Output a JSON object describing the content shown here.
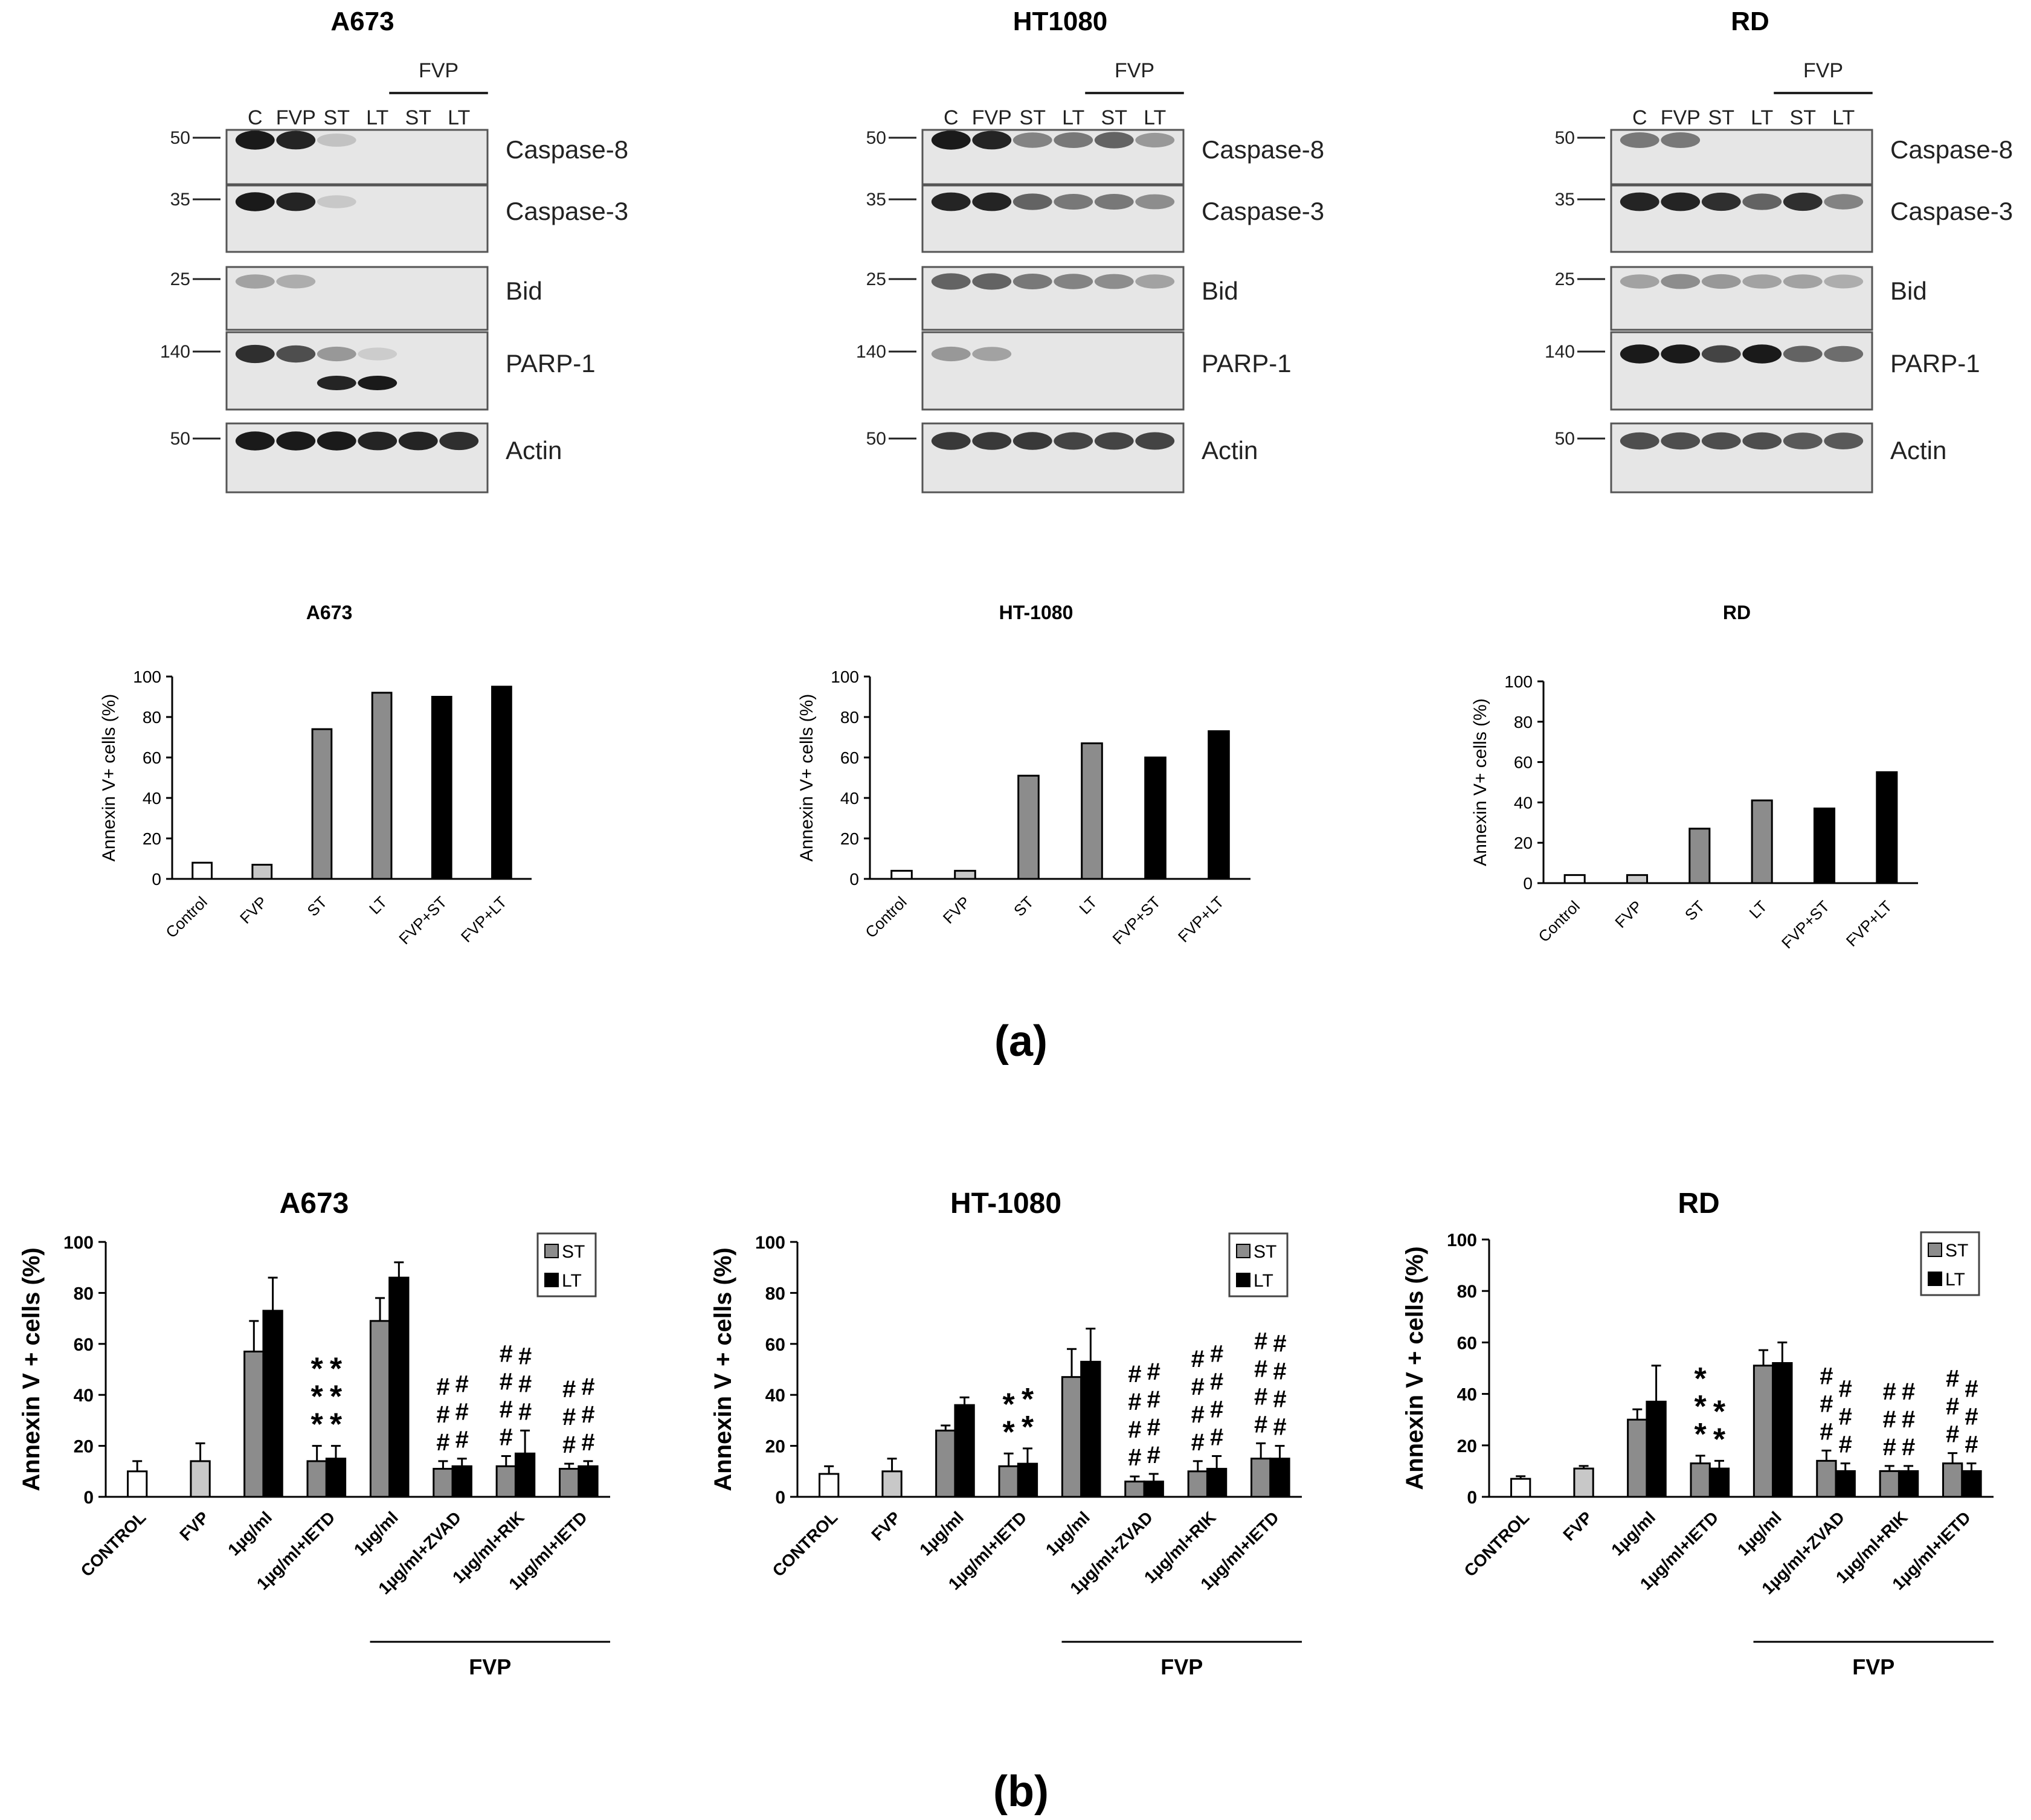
{
  "panel_a_label": "(a)",
  "panel_b_label": "(b)",
  "blots": [
    {
      "title": "A673",
      "bracket_label": "FVP",
      "lanes": [
        "C",
        "FVP",
        "ST",
        "LT",
        "ST",
        "LT"
      ],
      "rows": [
        {
          "protein": "Caspase-8",
          "mw": "50",
          "bands": [
            0.95,
            0.9,
            0.15,
            0,
            0,
            0
          ]
        },
        {
          "protein": "Caspase-3",
          "mw": "35",
          "bands": [
            0.95,
            0.9,
            0.12,
            0,
            0,
            0
          ]
        },
        {
          "protein": "Bid",
          "mw": "25",
          "bands": [
            0.3,
            0.25,
            0,
            0,
            0,
            0
          ]
        },
        {
          "protein": "PARP-1",
          "mw": "140",
          "bands": [
            0.85,
            0.7,
            0.35,
            0.1,
            0,
            0
          ],
          "cleaved": [
            0,
            0,
            0.9,
            0.95,
            0,
            0
          ]
        },
        {
          "protein": "Actin",
          "mw": "50",
          "bands": [
            0.95,
            0.95,
            0.95,
            0.9,
            0.9,
            0.85
          ]
        }
      ]
    },
    {
      "title": "HT1080",
      "bracket_label": "FVP",
      "lanes": [
        "C",
        "FVP",
        "ST",
        "LT",
        "ST",
        "LT"
      ],
      "rows": [
        {
          "protein": "Caspase-8",
          "mw": "50",
          "bands": [
            0.95,
            0.9,
            0.45,
            0.5,
            0.6,
            0.35
          ]
        },
        {
          "protein": "Caspase-3",
          "mw": "35",
          "bands": [
            0.9,
            0.9,
            0.6,
            0.5,
            0.5,
            0.4
          ]
        },
        {
          "protein": "Bid",
          "mw": "25",
          "bands": [
            0.6,
            0.6,
            0.5,
            0.45,
            0.4,
            0.3
          ]
        },
        {
          "protein": "PARP-1",
          "mw": "140",
          "bands": [
            0.35,
            0.3,
            0,
            0,
            0,
            0
          ]
        },
        {
          "protein": "Actin",
          "mw": "50",
          "bands": [
            0.8,
            0.8,
            0.8,
            0.75,
            0.75,
            0.75
          ]
        }
      ]
    },
    {
      "title": "RD",
      "bracket_label": "FVP",
      "lanes": [
        "C",
        "FVP",
        "ST",
        "LT",
        "ST",
        "LT"
      ],
      "rows": [
        {
          "protein": "Caspase-8",
          "mw": "50",
          "bands": [
            0.5,
            0.5,
            0,
            0,
            0,
            0
          ]
        },
        {
          "protein": "Caspase-3",
          "mw": "35",
          "bands": [
            0.9,
            0.9,
            0.85,
            0.6,
            0.85,
            0.45
          ]
        },
        {
          "protein": "Bid",
          "mw": "25",
          "bands": [
            0.3,
            0.4,
            0.35,
            0.3,
            0.3,
            0.25
          ]
        },
        {
          "protein": "PARP-1",
          "mw": "140",
          "bands": [
            0.95,
            0.95,
            0.75,
            0.95,
            0.6,
            0.55
          ]
        },
        {
          "protein": "Actin",
          "mw": "50",
          "bands": [
            0.7,
            0.7,
            0.7,
            0.7,
            0.65,
            0.65
          ]
        }
      ]
    }
  ],
  "chart_data": [
    {
      "type": "bar",
      "panel": "a",
      "title": "A673",
      "categories": [
        "Control",
        "FVP",
        "ST",
        "LT",
        "FVP+ST",
        "FVP+LT"
      ],
      "values": [
        8,
        7,
        74,
        92,
        90,
        95
      ],
      "colors": [
        "#ffffff",
        "#c8c8c8",
        "#8c8c8c",
        "#8c8c8c",
        "#000000",
        "#000000"
      ],
      "ylabel": "Annexin V+ cells (%)",
      "ylim": [
        0,
        100
      ],
      "yticks": [
        "0",
        "20",
        "40",
        "60",
        "80",
        "100"
      ]
    },
    {
      "type": "bar",
      "panel": "a",
      "title": "HT-1080",
      "categories": [
        "Control",
        "FVP",
        "ST",
        "LT",
        "FVP+ST",
        "FVP+LT"
      ],
      "values": [
        4,
        4,
        51,
        67,
        60,
        73
      ],
      "colors": [
        "#ffffff",
        "#c8c8c8",
        "#8c8c8c",
        "#8c8c8c",
        "#000000",
        "#000000"
      ],
      "ylabel": "Annexin V+ cells (%)",
      "ylim": [
        0,
        100
      ],
      "yticks": [
        "0",
        "20",
        "40",
        "60",
        "80",
        "100"
      ]
    },
    {
      "type": "bar",
      "panel": "a",
      "title": "RD",
      "categories": [
        "Control",
        "FVP",
        "ST",
        "LT",
        "FVP+ST",
        "FVP+LT"
      ],
      "values": [
        4,
        4,
        27,
        41,
        37,
        55
      ],
      "colors": [
        "#ffffff",
        "#c8c8c8",
        "#8c8c8c",
        "#8c8c8c",
        "#000000",
        "#000000"
      ],
      "ylabel": "Annexin V+ cells (%)",
      "ylim": [
        0,
        100
      ],
      "yticks": [
        "0",
        "20",
        "40",
        "60",
        "80",
        "100"
      ]
    },
    {
      "type": "bar",
      "panel": "b",
      "title": "A673",
      "ylabel": "Annexin V + cells (%)",
      "ylim": [
        0,
        100
      ],
      "yticks": [
        "0",
        "20",
        "40",
        "60",
        "80",
        "100"
      ],
      "legend": [
        "ST",
        "LT"
      ],
      "bracket_label": "FVP",
      "groups": [
        {
          "label": "CONTROL",
          "bars": [
            {
              "series": "control",
              "value": 10,
              "err": 4
            }
          ]
        },
        {
          "label": "FVP",
          "bars": [
            {
              "series": "fvp",
              "value": 14,
              "err": 7
            }
          ]
        },
        {
          "label": "1µg/ml",
          "bars": [
            {
              "series": "ST",
              "value": 57,
              "err": 12
            },
            {
              "series": "LT",
              "value": 73,
              "err": 13
            }
          ]
        },
        {
          "label": "1µg/ml+IETD",
          "bars": [
            {
              "series": "ST",
              "value": 14,
              "err": 6
            },
            {
              "series": "LT",
              "value": 15,
              "err": 5
            }
          ],
          "marks": [
            "*",
            "*"
          ],
          "mark_rows": 3
        },
        {
          "label": "1µg/ml",
          "bars": [
            {
              "series": "ST",
              "value": 69,
              "err": 9
            },
            {
              "series": "LT",
              "value": 86,
              "err": 6
            }
          ]
        },
        {
          "label": "1µg/ml+ZVAD",
          "bars": [
            {
              "series": "ST",
              "value": 11,
              "err": 3
            },
            {
              "series": "LT",
              "value": 12,
              "err": 3
            }
          ],
          "marks": [
            "#",
            "#"
          ],
          "mark_rows": 3
        },
        {
          "label": "1µg/ml+RIK",
          "bars": [
            {
              "series": "ST",
              "value": 12,
              "err": 4
            },
            {
              "series": "LT",
              "value": 17,
              "err": 9
            }
          ],
          "marks": [
            "#",
            "#"
          ],
          "mark_rows": [
            4,
            3
          ]
        },
        {
          "label": "1µg/ml+IETD",
          "bars": [
            {
              "series": "ST",
              "value": 11,
              "err": 2
            },
            {
              "series": "LT",
              "value": 12,
              "err": 2
            }
          ],
          "marks": [
            "#",
            "#"
          ],
          "mark_rows": 3
        }
      ]
    },
    {
      "type": "bar",
      "panel": "b",
      "title": "HT-1080",
      "ylabel": "Annexin V + cells (%)",
      "ylim": [
        0,
        100
      ],
      "yticks": [
        "0",
        "20",
        "40",
        "60",
        "80",
        "100"
      ],
      "legend": [
        "ST",
        "LT"
      ],
      "bracket_label": "FVP",
      "groups": [
        {
          "label": "CONTROL",
          "bars": [
            {
              "series": "control",
              "value": 9,
              "err": 3
            }
          ]
        },
        {
          "label": "FVP",
          "bars": [
            {
              "series": "fvp",
              "value": 10,
              "err": 5
            }
          ]
        },
        {
          "label": "1µg/ml",
          "bars": [
            {
              "series": "ST",
              "value": 26,
              "err": 2
            },
            {
              "series": "LT",
              "value": 36,
              "err": 3
            }
          ]
        },
        {
          "label": "1µg/ml+IETD",
          "bars": [
            {
              "series": "ST",
              "value": 12,
              "err": 5
            },
            {
              "series": "LT",
              "value": 13,
              "err": 6
            }
          ],
          "marks": [
            "*",
            "*"
          ],
          "mark_rows": 2
        },
        {
          "label": "1µg/ml",
          "bars": [
            {
              "series": "ST",
              "value": 47,
              "err": 11
            },
            {
              "series": "LT",
              "value": 53,
              "err": 13
            }
          ]
        },
        {
          "label": "1µg/ml+ZVAD",
          "bars": [
            {
              "series": "ST",
              "value": 6,
              "err": 2
            },
            {
              "series": "LT",
              "value": 6,
              "err": 3
            }
          ],
          "marks": [
            "#",
            "#"
          ],
          "mark_rows": 4
        },
        {
          "label": "1µg/ml+RIK",
          "bars": [
            {
              "series": "ST",
              "value": 10,
              "err": 4
            },
            {
              "series": "LT",
              "value": 11,
              "err": 5
            }
          ],
          "marks": [
            "#",
            "#"
          ],
          "mark_rows": 4
        },
        {
          "label": "1µg/ml+IETD",
          "bars": [
            {
              "series": "ST",
              "value": 15,
              "err": 6
            },
            {
              "series": "LT",
              "value": 15,
              "err": 5
            }
          ],
          "marks": [
            "#",
            "#"
          ],
          "mark_rows": 4
        }
      ]
    },
    {
      "type": "bar",
      "panel": "b",
      "title": "RD",
      "ylabel": "Annexin V + cells (%)",
      "ylim": [
        0,
        100
      ],
      "yticks": [
        "0",
        "20",
        "40",
        "60",
        "80",
        "100"
      ],
      "legend": [
        "ST",
        "LT"
      ],
      "bracket_label": "FVP",
      "groups": [
        {
          "label": "CONTROL",
          "bars": [
            {
              "series": "control",
              "value": 7,
              "err": 1
            }
          ]
        },
        {
          "label": "FVP",
          "bars": [
            {
              "series": "fvp",
              "value": 11,
              "err": 1
            }
          ]
        },
        {
          "label": "1µg/ml",
          "bars": [
            {
              "series": "ST",
              "value": 30,
              "err": 4
            },
            {
              "series": "LT",
              "value": 37,
              "err": 14
            }
          ]
        },
        {
          "label": "1µg/ml+IETD",
          "bars": [
            {
              "series": "ST",
              "value": 13,
              "err": 3
            },
            {
              "series": "LT",
              "value": 11,
              "err": 3
            }
          ],
          "marks": [
            "*",
            "*"
          ],
          "mark_rows": [
            3,
            2
          ]
        },
        {
          "label": "1µg/ml",
          "bars": [
            {
              "series": "ST",
              "value": 51,
              "err": 6
            },
            {
              "series": "LT",
              "value": 52,
              "err": 8
            }
          ]
        },
        {
          "label": "1µg/ml+ZVAD",
          "bars": [
            {
              "series": "ST",
              "value": 14,
              "err": 4
            },
            {
              "series": "LT",
              "value": 10,
              "err": 3
            }
          ],
          "marks": [
            "#",
            "#"
          ],
          "mark_rows": 3
        },
        {
          "label": "1µg/ml+RIK",
          "bars": [
            {
              "series": "ST",
              "value": 10,
              "err": 2
            },
            {
              "series": "LT",
              "value": 10,
              "err": 2
            }
          ],
          "marks": [
            "#",
            "#"
          ],
          "mark_rows": 3
        },
        {
          "label": "1µg/ml+IETD",
          "bars": [
            {
              "series": "ST",
              "value": 13,
              "err": 4
            },
            {
              "series": "LT",
              "value": 10,
              "err": 3
            }
          ],
          "marks": [
            "#",
            "#"
          ],
          "mark_rows": 3
        }
      ]
    }
  ],
  "colors": {
    "control": "#ffffff",
    "fvp": "#c8c8c8",
    "st": "#8c8c8c",
    "lt": "#000000",
    "blot_bg": "#e6e6e6"
  }
}
